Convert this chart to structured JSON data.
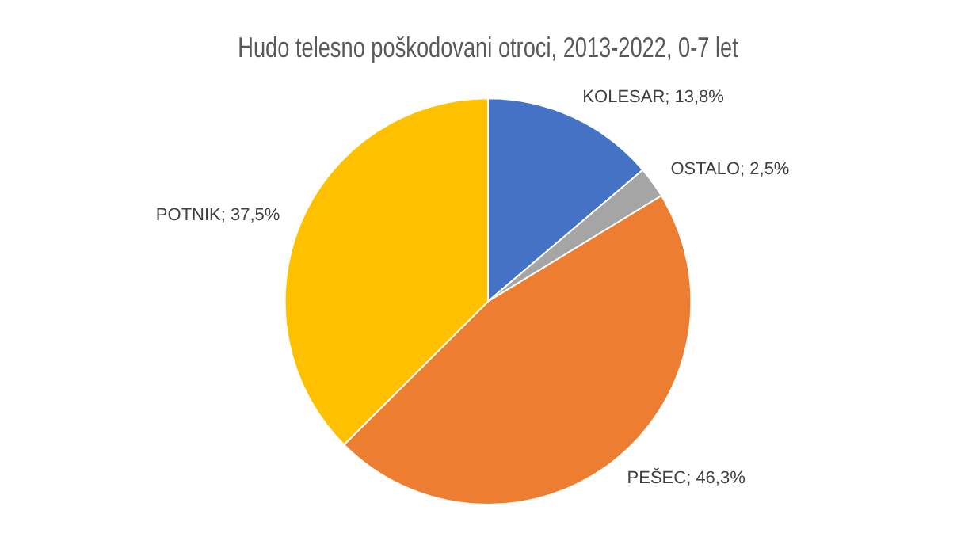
{
  "chart_data": {
    "type": "pie",
    "title": "Hudo telesno poškodovani otroci, 2013-2022, 0-7 let",
    "categories": [
      "KOLESAR",
      "OSTALO",
      "PEŠEC",
      "POTNIK"
    ],
    "values": [
      13.8,
      2.5,
      46.3,
      37.5
    ],
    "value_labels": [
      "13,8%",
      "2,5%",
      "46,3%",
      "37,5%"
    ],
    "colors": [
      "#4472c4",
      "#a5a5a5",
      "#ed7d31",
      "#ffc000"
    ],
    "legend": false
  }
}
